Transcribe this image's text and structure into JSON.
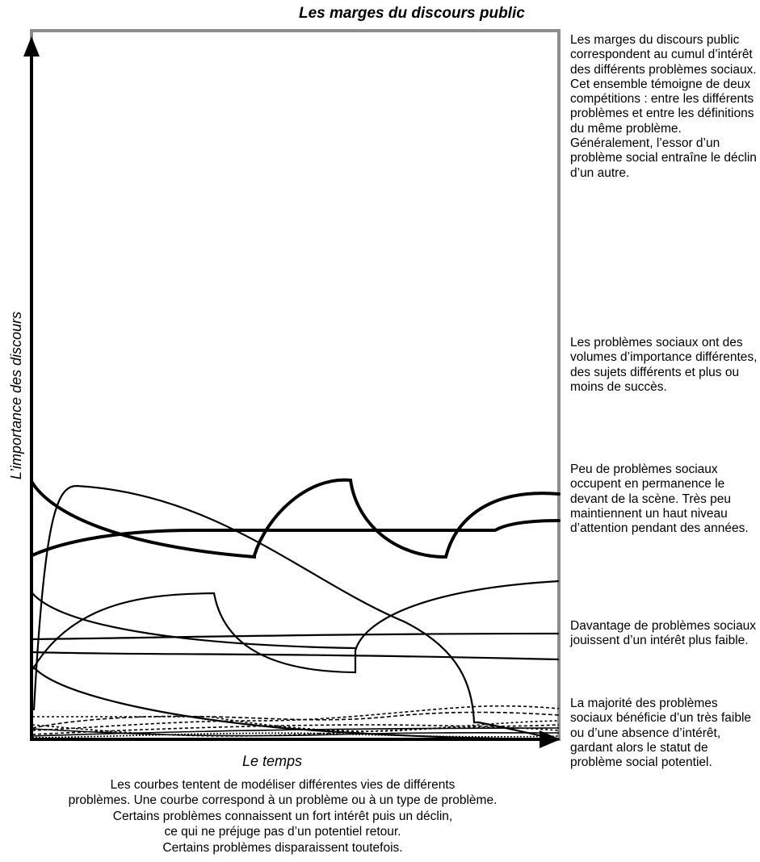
{
  "title": "Les marges du discours public",
  "axes": {
    "y_label": "L’importance des discours",
    "x_label": "Le temps"
  },
  "side_notes": [
    "Les marges du discours public correspondent au cumul d’intérêt des différents problèmes sociaux. Cet ensemble témoigne de deux compétitions : entre les différents problèmes et entre les définitions du même problème. Généralement, l’essor d’un problème social entraîne le déclin d’un autre.",
    "Les problèmes sociaux ont des volumes d’importance différentes, des sujets différents et plus ou moins de succès.",
    "Peu de problèmes sociaux occupent en permanence le devant de la scène. Très peu maintiennent un haut niveau d’attention pendant des années.",
    "Davantage de problèmes sociaux jouissent d’un intérêt plus faible.",
    "La majorité des problèmes sociaux bénéficie d’un très faible ou d’une absence d’intérêt, gardant alors le statut de problème social potentiel."
  ],
  "caption": [
    "Les courbes tentent de modéliser différentes vies de différents",
    "problèmes. Une courbe correspond à un problème ou à un type de problème.",
    "Certains problèmes connaissent un fort intérêt puis un déclin,",
    "ce qui ne préjuge pas d’un potentiel retour.",
    "Certains problèmes disparaissent toutefois."
  ],
  "colors": {
    "frame": "#8c8c8c",
    "axes": "#000000",
    "curves": "#000000"
  }
}
